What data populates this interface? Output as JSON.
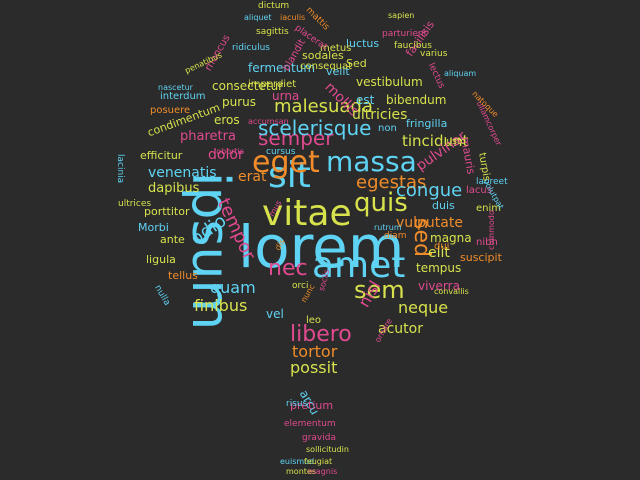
{
  "cloud": {
    "background": "#2b2b2b",
    "palette": {
      "cyan": "#5fd3f3",
      "yellow": "#d7e24c",
      "orange": "#f08c2a",
      "pink": "#e04a8f"
    },
    "words": [
      {
        "text": "lorem",
        "color": "cyan"
      },
      {
        "text": "ipsum",
        "color": "cyan"
      },
      {
        "text": "vitae",
        "color": "yellow"
      },
      {
        "text": "amet",
        "color": "cyan"
      },
      {
        "text": "sit",
        "color": "cyan"
      },
      {
        "text": "eget",
        "color": "orange"
      },
      {
        "text": "massa",
        "color": "cyan"
      },
      {
        "text": "quis",
        "color": "yellow"
      },
      {
        "text": "sem",
        "color": "yellow"
      },
      {
        "text": "nec",
        "color": "pink"
      },
      {
        "text": "sed",
        "color": "orange"
      },
      {
        "text": "semper",
        "color": "pink"
      },
      {
        "text": "scelerisque",
        "color": "cyan"
      },
      {
        "text": "libero",
        "color": "pink"
      },
      {
        "text": "egestas",
        "color": "orange"
      },
      {
        "text": "tempor",
        "color": "pink"
      },
      {
        "text": "odio",
        "color": "cyan"
      },
      {
        "text": "malesuada",
        "color": "yellow"
      },
      {
        "text": "congue",
        "color": "cyan"
      },
      {
        "text": "elit",
        "color": "yellow"
      },
      {
        "text": "vulputate",
        "color": "orange"
      },
      {
        "text": "neque",
        "color": "yellow"
      },
      {
        "text": "nisl",
        "color": "pink"
      },
      {
        "text": "quam",
        "color": "cyan"
      },
      {
        "text": "finibus",
        "color": "yellow"
      },
      {
        "text": "tortor",
        "color": "orange"
      },
      {
        "text": "possit",
        "color": "yellow"
      },
      {
        "text": "tincidunt",
        "color": "yellow"
      },
      {
        "text": "mollis",
        "color": "pink"
      },
      {
        "text": "ultricies",
        "color": "yellow"
      },
      {
        "text": "venenatis",
        "color": "cyan"
      },
      {
        "text": "pulvinar",
        "color": "pink"
      },
      {
        "text": "dolor",
        "color": "pink"
      },
      {
        "text": "erat",
        "color": "orange"
      },
      {
        "text": "dapibus",
        "color": "yellow"
      },
      {
        "text": "pharetra",
        "color": "pink"
      },
      {
        "text": "eros",
        "color": "yellow"
      },
      {
        "text": "purus",
        "color": "yellow"
      },
      {
        "text": "urna",
        "color": "pink"
      },
      {
        "text": "est",
        "color": "cyan"
      },
      {
        "text": "bibendum",
        "color": "yellow"
      },
      {
        "text": "vestibulum",
        "color": "yellow"
      },
      {
        "text": "consectetur",
        "color": "yellow"
      },
      {
        "text": "fermentum",
        "color": "cyan"
      },
      {
        "text": "velit",
        "color": "cyan"
      },
      {
        "text": "Sed",
        "color": "yellow"
      },
      {
        "text": "luctus",
        "color": "cyan"
      },
      {
        "text": "facilisis",
        "color": "pink"
      },
      {
        "text": "fringilla",
        "color": "cyan"
      },
      {
        "text": "mauris",
        "color": "pink"
      },
      {
        "text": "efficitur",
        "color": "yellow"
      },
      {
        "text": "condimentum",
        "color": "yellow"
      },
      {
        "text": "posuere",
        "color": "orange"
      },
      {
        "text": "interdum",
        "color": "cyan"
      },
      {
        "text": "porttitor",
        "color": "yellow"
      },
      {
        "text": "Morbi",
        "color": "cyan"
      },
      {
        "text": "ante",
        "color": "yellow"
      },
      {
        "text": "ligula",
        "color": "yellow"
      },
      {
        "text": "tellus",
        "color": "orange"
      },
      {
        "text": "vel",
        "color": "cyan"
      },
      {
        "text": "leo",
        "color": "yellow"
      },
      {
        "text": "arcu",
        "color": "cyan"
      },
      {
        "text": "pretium",
        "color": "pink"
      },
      {
        "text": "acutor",
        "color": "yellow"
      },
      {
        "text": "tempus",
        "color": "yellow"
      },
      {
        "text": "viverra",
        "color": "pink"
      },
      {
        "text": "magna",
        "color": "yellow"
      },
      {
        "text": "duis",
        "color": "cyan"
      },
      {
        "text": "dui",
        "color": "orange"
      },
      {
        "text": "lacus",
        "color": "pink"
      },
      {
        "text": "enim",
        "color": "yellow"
      },
      {
        "text": "nibh",
        "color": "pink"
      },
      {
        "text": "suscipit",
        "color": "orange"
      },
      {
        "text": "laoreet",
        "color": "cyan"
      },
      {
        "text": "turpis",
        "color": "yellow"
      },
      {
        "text": "non",
        "color": "cyan"
      },
      {
        "text": "justo",
        "color": "yellow"
      },
      {
        "text": "aliquam",
        "color": "cyan"
      },
      {
        "text": "commodo",
        "color": "pink"
      },
      {
        "text": "ullamcorper",
        "color": "pink"
      },
      {
        "text": "lectus",
        "color": "pink"
      },
      {
        "text": "varius",
        "color": "yellow"
      },
      {
        "text": "faucibus",
        "color": "yellow"
      },
      {
        "text": "sodales",
        "color": "yellow"
      },
      {
        "text": "consequat",
        "color": "yellow"
      },
      {
        "text": "metus",
        "color": "yellow"
      },
      {
        "text": "imperdiet",
        "color": "yellow"
      },
      {
        "text": "blandit",
        "color": "pink"
      },
      {
        "text": "rhoncus",
        "color": "pink"
      },
      {
        "text": "nascetur",
        "color": "cyan"
      },
      {
        "text": "penatibus",
        "color": "yellow"
      },
      {
        "text": "ridiculus",
        "color": "cyan"
      },
      {
        "text": "sagittis",
        "color": "yellow"
      },
      {
        "text": "aliquet",
        "color": "cyan"
      },
      {
        "text": "iaculis",
        "color": "orange"
      },
      {
        "text": "placerat",
        "color": "pink"
      },
      {
        "text": "dictum",
        "color": "yellow"
      },
      {
        "text": "mattis",
        "color": "orange"
      },
      {
        "text": "parturient",
        "color": "pink"
      },
      {
        "text": "sapien",
        "color": "yellow"
      },
      {
        "text": "natoque",
        "color": "orange"
      },
      {
        "text": "volutpat",
        "color": "cyan"
      },
      {
        "text": "ultrices",
        "color": "yellow"
      },
      {
        "text": "lacinia",
        "color": "cyan"
      },
      {
        "text": "cursus",
        "color": "cyan"
      },
      {
        "text": "diam",
        "color": "orange"
      },
      {
        "text": "nulla",
        "color": "cyan"
      },
      {
        "text": "orci",
        "color": "yellow"
      },
      {
        "text": "convallis",
        "color": "yellow"
      },
      {
        "text": "risus",
        "color": "cyan"
      },
      {
        "text": "elementum",
        "color": "pink"
      },
      {
        "text": "gravida",
        "color": "pink"
      },
      {
        "text": "sollicitudin",
        "color": "yellow"
      },
      {
        "text": "euismod",
        "color": "cyan"
      },
      {
        "text": "feugiat",
        "color": "yellow"
      },
      {
        "text": "montes",
        "color": "yellow"
      },
      {
        "text": "magnis",
        "color": "pink"
      },
      {
        "text": "mus",
        "color": "pink"
      },
      {
        "text": "dis",
        "color": "orange"
      },
      {
        "text": "nunc",
        "color": "orange"
      },
      {
        "text": "sociis",
        "color": "pink"
      },
      {
        "text": "accumsan",
        "color": "pink"
      },
      {
        "text": "lobortis",
        "color": "pink"
      },
      {
        "text": "rutrum",
        "color": "cyan"
      },
      {
        "text": "ornare",
        "color": "pink"
      },
      {
        "text": "felis",
        "color": "orange"
      },
      {
        "text": "hendrerit",
        "color": "pink"
      }
    ]
  }
}
